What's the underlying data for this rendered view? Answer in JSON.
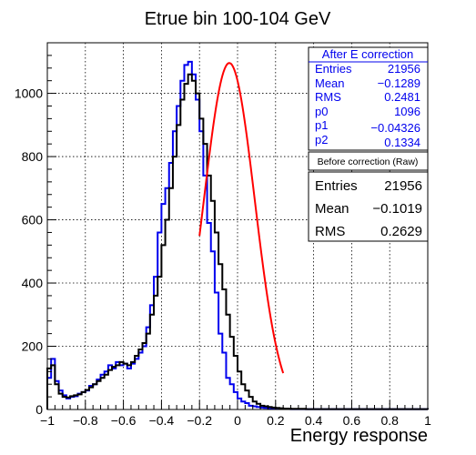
{
  "chart_data": {
    "type": "histogram",
    "title": "Etrue bin 100-104 GeV",
    "xlabel": "Energy response",
    "ylabel": "",
    "xlim": [
      -1,
      1
    ],
    "ylim": [
      0,
      1160
    ],
    "grid": true,
    "x_ticks": [
      -1,
      -0.8,
      -0.6,
      -0.4,
      -0.2,
      0,
      0.2,
      0.4,
      0.6,
      0.8,
      1
    ],
    "x_tick_labels": [
      "−1",
      "−0.8",
      "−0.6",
      "−0.4",
      "−0.2",
      "0",
      "0.2",
      "0.4",
      "0.6",
      "0.8",
      "1"
    ],
    "y_ticks": [
      0,
      200,
      400,
      600,
      800,
      1000
    ],
    "y_tick_labels": [
      "0",
      "200",
      "400",
      "600",
      "800",
      "1000"
    ],
    "bin_width": 0.02,
    "bin_edges_range": [
      -1,
      1
    ],
    "series": [
      {
        "key": "after",
        "color": "#0000ee",
        "values": [
          100,
          160,
          90,
          60,
          45,
          35,
          40,
          42,
          50,
          55,
          60,
          75,
          80,
          95,
          110,
          120,
          140,
          130,
          150,
          140,
          145,
          130,
          145,
          160,
          180,
          200,
          260,
          330,
          420,
          560,
          650,
          700,
          780,
          880,
          960,
          1040,
          1090,
          1100,
          1060,
          980,
          880,
          740,
          590,
          500,
          370,
          240,
          180,
          100,
          80,
          55,
          35,
          25,
          20,
          12,
          10,
          8,
          6,
          5,
          4,
          3,
          3,
          2,
          2,
          2,
          1,
          1,
          1,
          1,
          1,
          1,
          1,
          1,
          1,
          1,
          1,
          1,
          1,
          1,
          1,
          1,
          1,
          1,
          1,
          1,
          1,
          1,
          1,
          1,
          1,
          1,
          1,
          1,
          1,
          1,
          1,
          1,
          1,
          1,
          1,
          1
        ]
      },
      {
        "key": "before",
        "color": "#000000",
        "values": [
          130,
          140,
          80,
          50,
          40,
          38,
          42,
          45,
          48,
          55,
          62,
          70,
          80,
          90,
          100,
          110,
          125,
          135,
          140,
          150,
          145,
          140,
          150,
          170,
          190,
          210,
          240,
          300,
          360,
          420,
          520,
          600,
          700,
          800,
          900,
          980,
          1030,
          1060,
          1040,
          1000,
          920,
          840,
          740,
          660,
          560,
          460,
          380,
          300,
          230,
          170,
          120,
          80,
          60,
          40,
          25,
          18,
          12,
          10,
          8,
          6,
          5,
          4,
          3,
          3,
          2,
          2,
          2,
          2,
          1,
          1,
          1,
          1,
          1,
          1,
          1,
          1,
          1,
          1,
          1,
          1,
          1,
          1,
          1,
          1,
          1,
          1,
          1,
          1,
          1,
          1,
          1,
          1,
          1,
          1,
          1,
          1,
          1,
          1,
          1,
          1
        ]
      }
    ],
    "fit": {
      "color": "#ff0000",
      "x_range": [
        -0.2,
        0.24
      ],
      "p0": 1096,
      "p1": -0.04326,
      "p2": 0.1334
    }
  },
  "stats_after": {
    "title": "After E correction",
    "color": "#0000ee",
    "rows": [
      {
        "label": "Entries",
        "value": "21956"
      },
      {
        "label": "Mean",
        "value": "−0.1289"
      },
      {
        "label": "RMS",
        "value": "0.2481"
      },
      {
        "label": "p0",
        "value": "1096"
      },
      {
        "label": "p1",
        "value": "−0.04326"
      },
      {
        "label": "p2",
        "value": "0.1334"
      }
    ]
  },
  "stats_before": {
    "title": "Before correction (Raw)",
    "color": "#000000",
    "rows": [
      {
        "label": "Entries",
        "value": "21956"
      },
      {
        "label": "Mean",
        "value": "−0.1019"
      },
      {
        "label": "RMS",
        "value": "0.2629"
      }
    ]
  }
}
